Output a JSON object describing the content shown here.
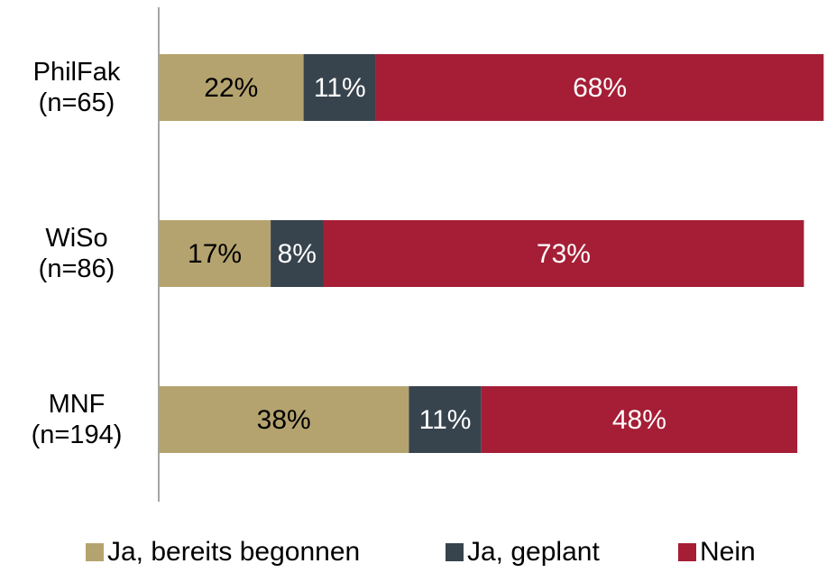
{
  "chart_data": {
    "type": "stacked-bar-horizontal",
    "categories": [
      "PhilFak\n(n=65)",
      "WiSo\n(n=86)",
      "MNF\n(n=194)"
    ],
    "series": [
      {
        "name": "Ja, bereits begonnen",
        "color": "#b5a36f",
        "values": [
          22,
          17,
          38
        ],
        "value_labels": [
          "22%",
          "17%",
          "38%"
        ],
        "label_color": "#000000"
      },
      {
        "name": "Ja, geplant",
        "color": "#37434d",
        "values": [
          11,
          8,
          11
        ],
        "value_labels": [
          "11%",
          "8%",
          "11%"
        ],
        "label_color": "#ffffff"
      },
      {
        "name": "Nein",
        "color": "#a51e36",
        "values": [
          68,
          73,
          48
        ],
        "value_labels": [
          "68%",
          "73%",
          "48%"
        ],
        "label_color": "#ffffff"
      }
    ],
    "xlim": [
      0,
      100
    ],
    "legend": "bottom"
  }
}
